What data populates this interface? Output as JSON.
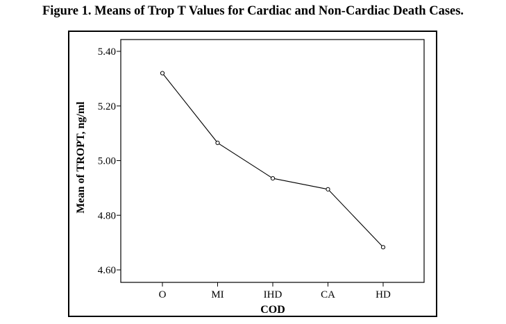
{
  "title": "Figure 1. Means of Trop T Values for Cardiac and Non-Cardiac Death Cases.",
  "chart_data": {
    "type": "line",
    "title": "Figure 1. Means of Trop T Values for Cardiac and Non-Cardiac Death Cases.",
    "xlabel": "COD",
    "ylabel": "Mean of TROPT, ng/ml",
    "categories": [
      "O",
      "MI",
      "IHD",
      "CA",
      "HD"
    ],
    "values": [
      5.32,
      5.065,
      4.935,
      4.895,
      4.683
    ],
    "ylim": [
      4.6,
      5.4
    ],
    "yticks": [
      "4.60",
      "4.80",
      "5.00",
      "5.20",
      "5.40"
    ],
    "grid": false,
    "marker": "open-circle",
    "line_color": "#000000"
  }
}
